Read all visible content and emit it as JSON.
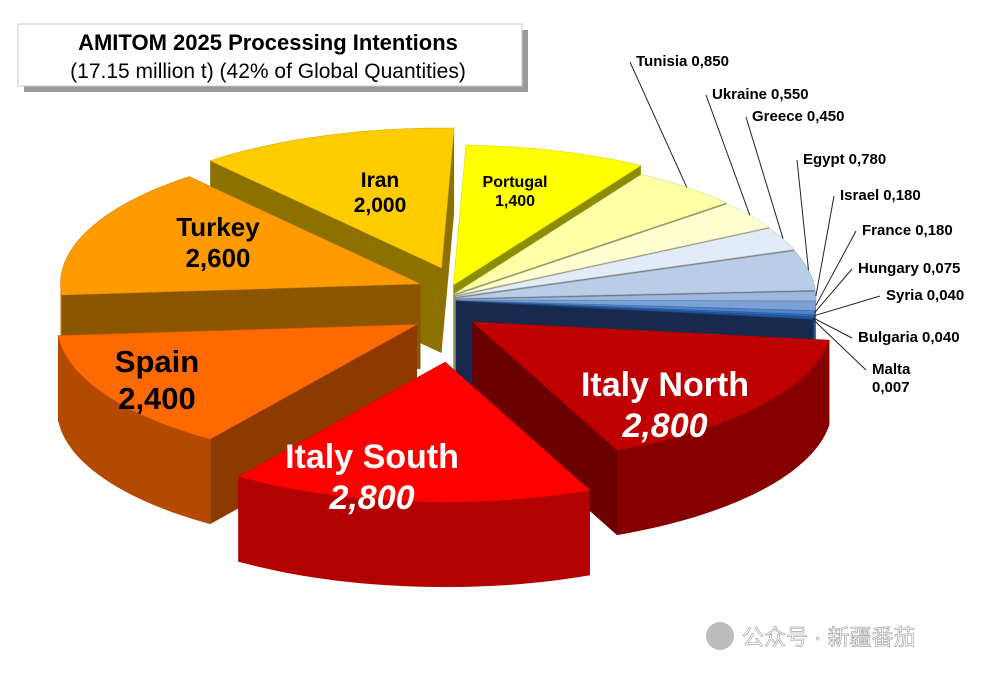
{
  "chart_data": {
    "type": "pie",
    "title": "AMITOM 2025 Processing Intentions",
    "subtitle": "(17.15 million t) (42% of Global Quantities)",
    "categories": [
      "Portugal",
      "Tunisia",
      "Ukraine",
      "Greece",
      "Egypt",
      "Israel",
      "France",
      "Hungary",
      "Syria",
      "Bulgaria",
      "Malta",
      "Italy North",
      "Italy South",
      "Spain",
      "Turkey",
      "Iran"
    ],
    "values": [
      1.4,
      0.85,
      0.55,
      0.45,
      0.78,
      0.18,
      0.18,
      0.075,
      0.04,
      0.04,
      0.007,
      2.8,
      2.8,
      2.4,
      2.6,
      2.0
    ],
    "value_labels": [
      "1,400",
      "0,850",
      "0,550",
      "0,450",
      "0,780",
      "0,180",
      "0,180",
      "0,075",
      "0,040",
      "0,040",
      "0,007",
      "2,800",
      "2,800",
      "2,400",
      "2,600",
      "2,000"
    ],
    "colors": [
      "#ffff00",
      "#ffffa6",
      "#ffffd0",
      "#e2ebf6",
      "#b9cde6",
      "#9db8de",
      "#7aa2d6",
      "#4f84cb",
      "#2f6cbc",
      "#2259a4",
      "#2a4a8c",
      "#c00000",
      "#ff0000",
      "#ff6a00",
      "#ff9b00",
      "#ffcc00"
    ],
    "watermark": "公众号 · 新疆番茄"
  }
}
